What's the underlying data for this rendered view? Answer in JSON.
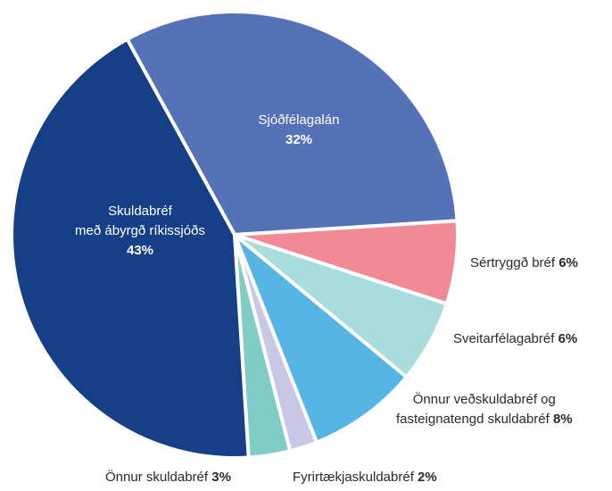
{
  "chart_data": {
    "type": "pie",
    "categories": [
      "Sjóðfélagalán",
      "Sértryggð bréf",
      "Sveitarfélagabréf",
      "Önnur veðskuldabréf og\nfasteignatengd skuldabréf",
      "Fyrirtækjaskuldabréf",
      "Önnur skuldabréf",
      "Skuldabréf\nmeð ábyrgð ríkissjóðs"
    ],
    "values": [
      32,
      6,
      6,
      8,
      2,
      3,
      43
    ],
    "value_labels": [
      "32%",
      "6%",
      "6%",
      "8%",
      "2%",
      "3%",
      "43%"
    ],
    "colors": [
      "#5572b8",
      "#f28a96",
      "#a9dcdc",
      "#57b5e6",
      "#c9c7e6",
      "#7fcdc4",
      "#173f87"
    ]
  }
}
